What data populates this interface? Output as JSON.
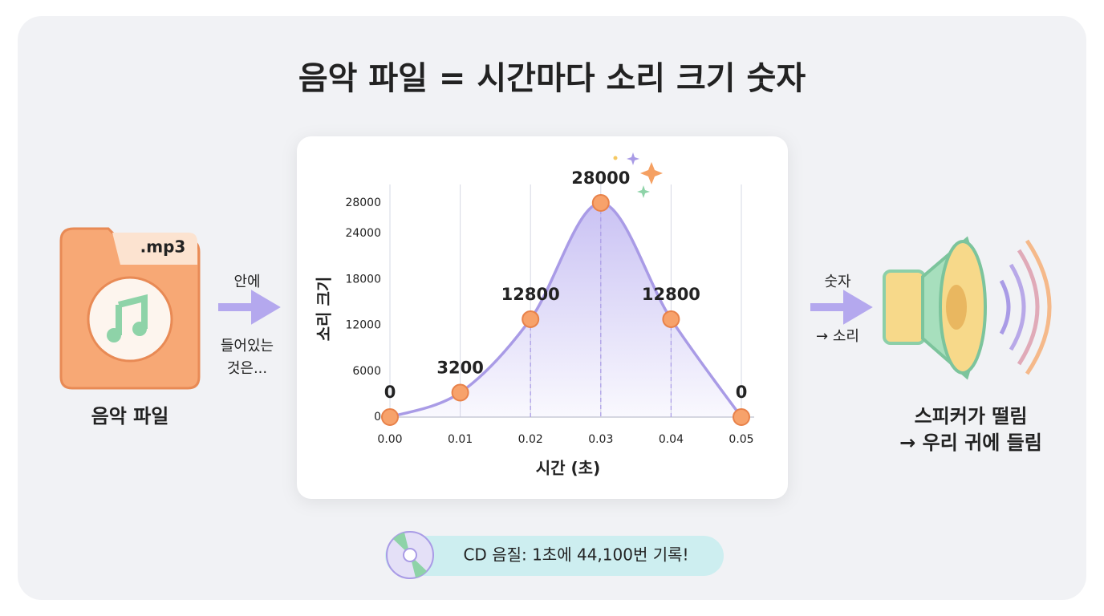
{
  "title": "음악 파일 = 시간마다 소리 크기 숫자",
  "left": {
    "badge": ".mp3",
    "label": "음악 파일"
  },
  "arrow_left": {
    "top": "안에",
    "bottom": [
      "들어있는",
      "것은..."
    ]
  },
  "arrow_right": {
    "top": "숫자",
    "bottom": "→ 소리"
  },
  "right": {
    "lines": [
      "스피커가 떨림",
      "→ 우리 귀에 들림"
    ]
  },
  "note": "CD 음질: 1초에 44,100번 기록!",
  "chart_data": {
    "type": "line",
    "xlabel": "시간 (초)",
    "ylabel": "소리 크기",
    "x": [
      0,
      0.01,
      0.02,
      0.03,
      0.04,
      0.05
    ],
    "series": [
      {
        "name": "소리 크기",
        "color": "#a99be6",
        "marker_color": "#f7a26b",
        "values": [
          0,
          3200,
          12800,
          28000,
          12800,
          0
        ]
      }
    ],
    "xlim": [
      0,
      0.05
    ],
    "xticks": [
      {
        "value": 0,
        "label": "0.00"
      },
      0.01,
      0.02,
      0.03,
      0.04,
      0.05
    ],
    "ylim": [
      0,
      28000
    ],
    "yticks": [
      0,
      6000,
      12000,
      18000,
      24000,
      28000
    ],
    "grid": true
  }
}
